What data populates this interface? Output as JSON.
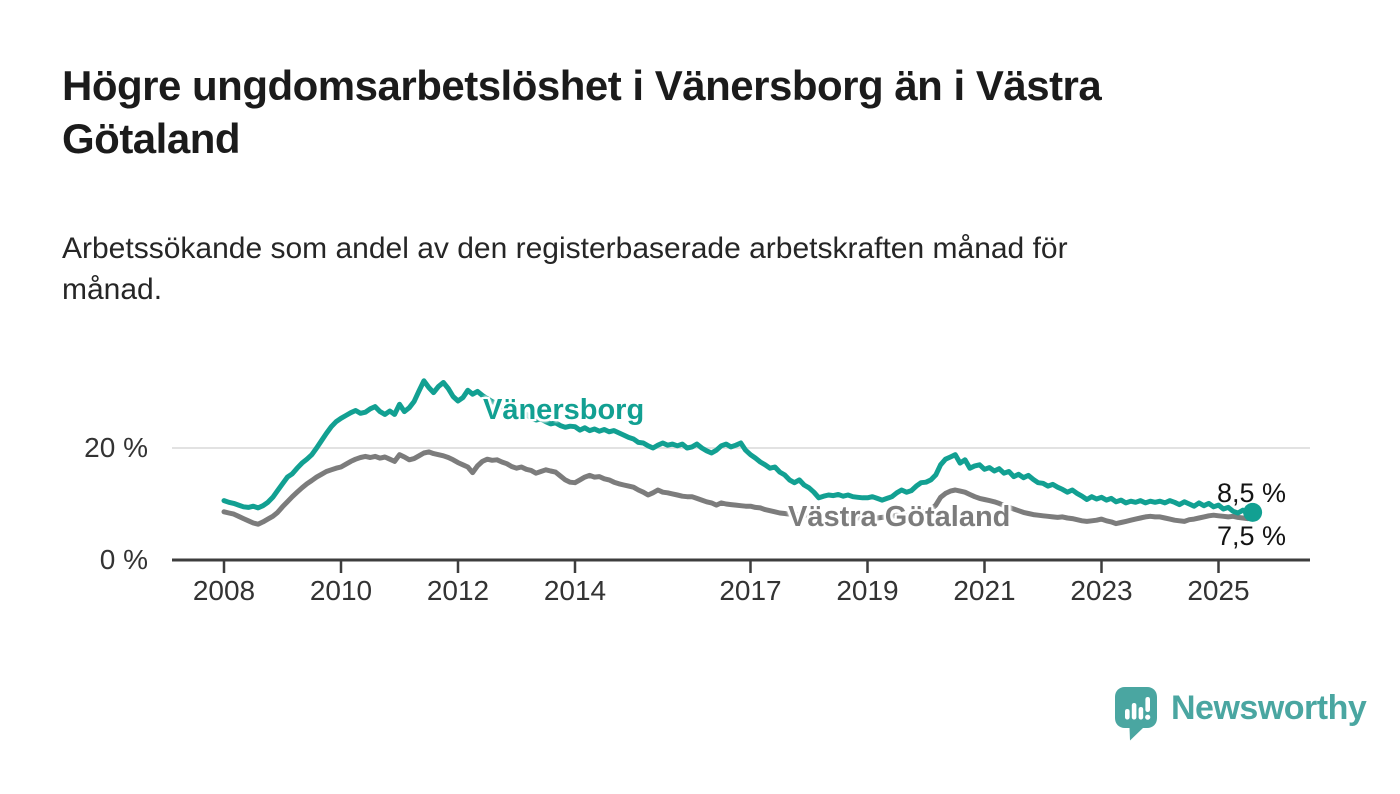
{
  "page": {
    "title": "Högre ungdomsarbetslöshet i Vänersborg än i Västra\nGötaland",
    "subtitle": "Arbetssökande som andel av den registerbaserade arbetskraften månad för\nmånad."
  },
  "branding": {
    "name": "Newsworthy",
    "color": "#4aa6a1",
    "icon": "chart-speech-bubble-pin-icon"
  },
  "colors": {
    "title_text": "#1b1b1b",
    "axis_line": "#3d3d3d",
    "tick_text": "#333333",
    "gridline": "#d9d9d9",
    "background": "#ffffff"
  },
  "chart_data": {
    "type": "line",
    "unit": "%",
    "x_unit": "month",
    "x_start": "2008-01",
    "x_end": "2025-08",
    "x_ticks": [
      2008,
      2010,
      2012,
      2014,
      2017,
      2019,
      2021,
      2023,
      2025
    ],
    "y_ticks": [
      {
        "value": 20,
        "label": "20 %"
      },
      {
        "value": 0,
        "label": "0 %"
      }
    ],
    "ylim": [
      0,
      36
    ],
    "grid": "y-only",
    "legend": "inline-labels",
    "series": [
      {
        "name": "Vänersborg",
        "color": "#12a092",
        "end_label": "8,5 %",
        "end_value": 8.5,
        "end_dot": true,
        "values": [
          10.6,
          10.3,
          10.1,
          9.8,
          9.5,
          9.4,
          9.6,
          9.3,
          9.7,
          10.3,
          11.2,
          12.4,
          13.6,
          14.8,
          15.4,
          16.4,
          17.3,
          18.0,
          18.8,
          20.0,
          21.3,
          22.6,
          23.8,
          24.7,
          25.3,
          25.8,
          26.3,
          26.7,
          26.2,
          26.4,
          27.0,
          27.4,
          26.5,
          26.0,
          26.6,
          26.0,
          27.8,
          26.5,
          27.2,
          28.3,
          30.2,
          32.0,
          30.8,
          29.9,
          31.0,
          31.7,
          30.6,
          29.2,
          28.4,
          29.0,
          30.3,
          29.6,
          30.1,
          29.4,
          28.8,
          28.3,
          27.9,
          27.4,
          27.0,
          26.6,
          26.2,
          25.8,
          26.0,
          25.4,
          25.0,
          25.2,
          24.7,
          24.3,
          24.5,
          24.0,
          23.7,
          23.9,
          23.8,
          23.2,
          23.6,
          23.1,
          23.4,
          23.0,
          23.3,
          22.9,
          23.1,
          22.7,
          22.3,
          21.9,
          21.6,
          21.0,
          20.9,
          20.4,
          20.0,
          20.5,
          20.9,
          20.5,
          20.7,
          20.4,
          20.7,
          20.0,
          20.2,
          20.7,
          20.0,
          19.5,
          19.1,
          19.6,
          20.4,
          20.7,
          20.2,
          20.5,
          20.9,
          19.6,
          18.8,
          18.2,
          17.5,
          17.0,
          16.4,
          16.6,
          15.7,
          15.2,
          14.3,
          13.8,
          14.3,
          13.4,
          12.9,
          12.1,
          11.1,
          11.4,
          11.6,
          11.5,
          11.7,
          11.4,
          11.6,
          11.3,
          11.2,
          11.1,
          11.1,
          11.3,
          11.0,
          10.7,
          11.0,
          11.3,
          12.0,
          12.5,
          12.1,
          12.4,
          13.2,
          13.8,
          13.9,
          14.3,
          15.2,
          17.0,
          18.0,
          18.4,
          18.8,
          17.3,
          17.9,
          16.4,
          16.8,
          17.0,
          16.2,
          16.5,
          15.9,
          16.3,
          15.5,
          15.8,
          14.9,
          15.3,
          14.7,
          15.1,
          14.4,
          13.8,
          13.7,
          13.2,
          13.5,
          13.0,
          12.6,
          12.1,
          12.5,
          11.9,
          11.4,
          10.8,
          11.3,
          10.9,
          11.2,
          10.7,
          11.0,
          10.4,
          10.7,
          10.2,
          10.5,
          10.3,
          10.6,
          10.2,
          10.5,
          10.3,
          10.5,
          10.2,
          10.6,
          10.3,
          9.9,
          10.4,
          10.0,
          9.6,
          10.2,
          9.7,
          10.1,
          9.5,
          9.8,
          9.1,
          9.4,
          8.7,
          8.4,
          8.9,
          8.3,
          8.5
        ]
      },
      {
        "name": "Västra Götaland",
        "color": "#7c7c7c",
        "end_label": "7,5 %",
        "end_value": 7.5,
        "end_dot": false,
        "values": [
          8.6,
          8.4,
          8.2,
          7.8,
          7.4,
          7.0,
          6.6,
          6.4,
          6.8,
          7.3,
          7.8,
          8.5,
          9.5,
          10.4,
          11.3,
          12.1,
          12.9,
          13.6,
          14.2,
          14.8,
          15.3,
          15.8,
          16.1,
          16.4,
          16.6,
          17.1,
          17.6,
          18.0,
          18.3,
          18.5,
          18.3,
          18.5,
          18.2,
          18.4,
          18.0,
          17.6,
          18.8,
          18.4,
          17.9,
          18.1,
          18.6,
          19.1,
          19.3,
          19.0,
          18.8,
          18.6,
          18.3,
          17.9,
          17.4,
          17.0,
          16.6,
          15.6,
          16.8,
          17.6,
          18.0,
          17.8,
          17.9,
          17.5,
          17.2,
          16.7,
          16.4,
          16.6,
          16.2,
          16.0,
          15.5,
          15.8,
          16.1,
          15.9,
          15.7,
          15.0,
          14.3,
          13.9,
          13.8,
          14.3,
          14.8,
          15.1,
          14.8,
          14.9,
          14.5,
          14.3,
          13.9,
          13.6,
          13.4,
          13.2,
          13.0,
          12.5,
          12.1,
          11.6,
          12.0,
          12.5,
          12.1,
          12.0,
          11.8,
          11.6,
          11.4,
          11.3,
          11.3,
          11.0,
          10.7,
          10.4,
          10.2,
          9.8,
          10.2,
          10.0,
          9.9,
          9.8,
          9.7,
          9.6,
          9.6,
          9.4,
          9.3,
          9.0,
          8.8,
          8.6,
          8.4,
          8.3,
          8.2,
          8.2,
          8.1,
          8.0,
          7.9,
          7.8,
          7.7,
          7.6,
          7.5,
          7.6,
          7.5,
          7.6,
          7.4,
          7.4,
          7.5,
          7.6,
          7.6,
          7.5,
          7.5,
          7.6,
          7.7,
          7.8,
          8.0,
          7.9,
          8.0,
          8.1,
          8.3,
          8.5,
          8.7,
          9.0,
          9.8,
          11.2,
          11.9,
          12.3,
          12.5,
          12.3,
          12.1,
          11.7,
          11.3,
          11.0,
          10.8,
          10.6,
          10.4,
          10.1,
          9.7,
          9.4,
          9.1,
          8.8,
          8.5,
          8.3,
          8.1,
          8.0,
          7.9,
          7.8,
          7.7,
          7.6,
          7.7,
          7.5,
          7.4,
          7.2,
          7.0,
          6.9,
          7.0,
          7.1,
          7.3,
          7.0,
          6.8,
          6.5,
          6.7,
          6.9,
          7.1,
          7.3,
          7.5,
          7.7,
          7.8,
          7.7,
          7.7,
          7.5,
          7.3,
          7.1,
          7.0,
          6.9,
          7.2,
          7.3,
          7.5,
          7.7,
          7.9,
          8.0,
          7.9,
          7.8,
          7.7,
          7.8,
          7.6,
          7.5,
          7.4,
          7.5
        ]
      }
    ]
  }
}
